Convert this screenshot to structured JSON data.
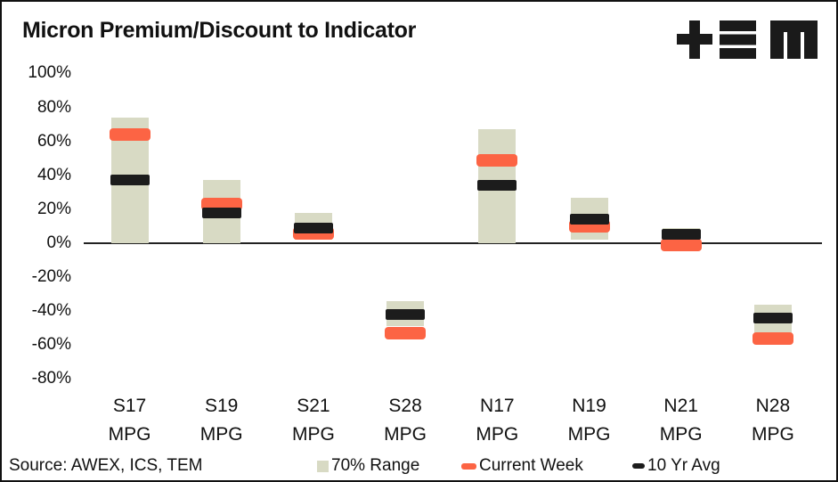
{
  "header": {
    "title": "Micron Premium/Discount to Indicator",
    "logo_name": "TEM plus-bars-M logo"
  },
  "footer": {
    "source": "Source: AWEX, ICS, TEM"
  },
  "legend": {
    "items": [
      {
        "label": "70% Range",
        "color": "#D8DAC4",
        "shape": "square"
      },
      {
        "label": "Current Week",
        "color": "#FC6444",
        "shape": "pill"
      },
      {
        "label": "10 Yr Avg",
        "color": "#1C1C1C",
        "shape": "pill"
      }
    ],
    "position": "bottom"
  },
  "colors": {
    "range": "#D8DAC4",
    "current_week": "#FC6444",
    "ten_yr_avg": "#1C1C1C",
    "axis": "#222222",
    "text": "#111111",
    "background": "#FFFFFF"
  },
  "chart_data": {
    "type": "bar",
    "subtype": "floating-range-with-markers",
    "title": "Micron Premium/Discount to Indicator",
    "categories": [
      "S17 MPG",
      "S19 MPG",
      "S21 MPG",
      "S28 MPG",
      "N17 MPG",
      "N19 MPG",
      "N21 MPG",
      "N28 MPG"
    ],
    "series": [
      {
        "name": "70% Range",
        "type": "range",
        "low": [
          0,
          0,
          2,
          -49,
          0,
          2,
          0,
          -53
        ],
        "high": [
          74,
          37,
          18,
          -34,
          67,
          27,
          9,
          -36
        ]
      },
      {
        "name": "Current Week",
        "type": "marker",
        "values": [
          64,
          23,
          6,
          -53,
          49,
          10,
          -1,
          -56
        ]
      },
      {
        "name": "10 Yr Avg",
        "type": "marker",
        "values": [
          37,
          18,
          9,
          -42,
          34,
          14,
          5,
          -44
        ]
      }
    ],
    "xlabel": "",
    "ylabel": "",
    "unit": "%",
    "ylim": [
      -80,
      100
    ],
    "yticks": [
      100,
      80,
      60,
      40,
      20,
      0,
      -20,
      -40,
      -60,
      -80
    ],
    "grid": false,
    "legend_position": "bottom"
  }
}
